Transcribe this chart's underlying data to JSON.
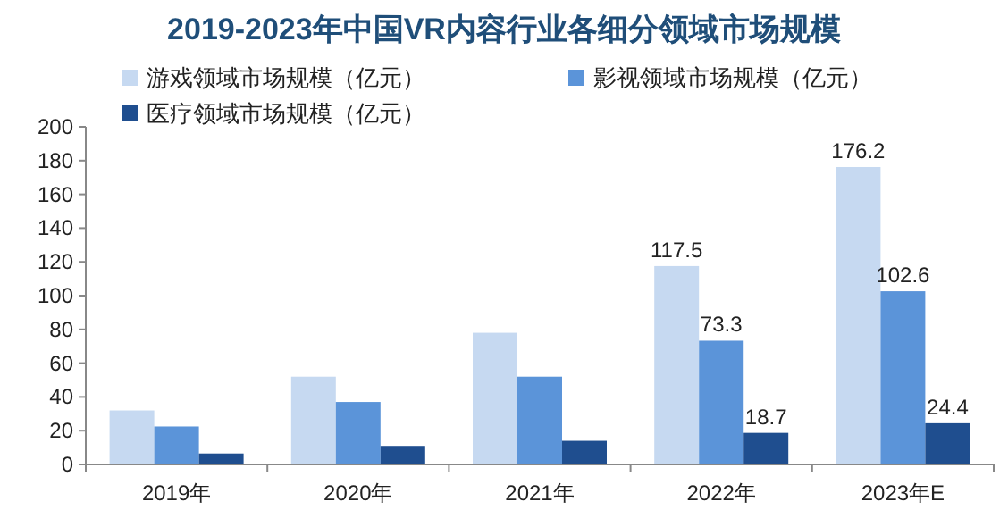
{
  "chart_data": {
    "type": "bar",
    "title": "2019-2023年中国VR内容行业各细分领域市场规模",
    "categories": [
      "2019年",
      "2020年",
      "2021年",
      "2022年",
      "2023年E"
    ],
    "series": [
      {
        "name": "游戏领域市场规模（亿元）",
        "color": "#c6d9f1",
        "values": [
          32,
          52,
          78,
          117.5,
          176.2
        ],
        "value_labels": [
          null,
          null,
          null,
          "117.5",
          "176.2"
        ]
      },
      {
        "name": "影视领域市场规模（亿元）",
        "color": "#5b94d9",
        "values": [
          22.5,
          37,
          52,
          73.3,
          102.6
        ],
        "value_labels": [
          null,
          null,
          null,
          "73.3",
          "102.6"
        ]
      },
      {
        "name": "医疗领域市场规模（亿元）",
        "color": "#1f4e8f",
        "values": [
          6.5,
          11,
          14,
          18.7,
          24.4
        ],
        "value_labels": [
          null,
          null,
          null,
          "18.7",
          "24.4"
        ]
      }
    ],
    "ylim": [
      0,
      200
    ],
    "yticks": [
      0,
      20,
      40,
      60,
      80,
      100,
      120,
      140,
      160,
      180,
      200
    ],
    "grid": false,
    "legend": "top"
  }
}
